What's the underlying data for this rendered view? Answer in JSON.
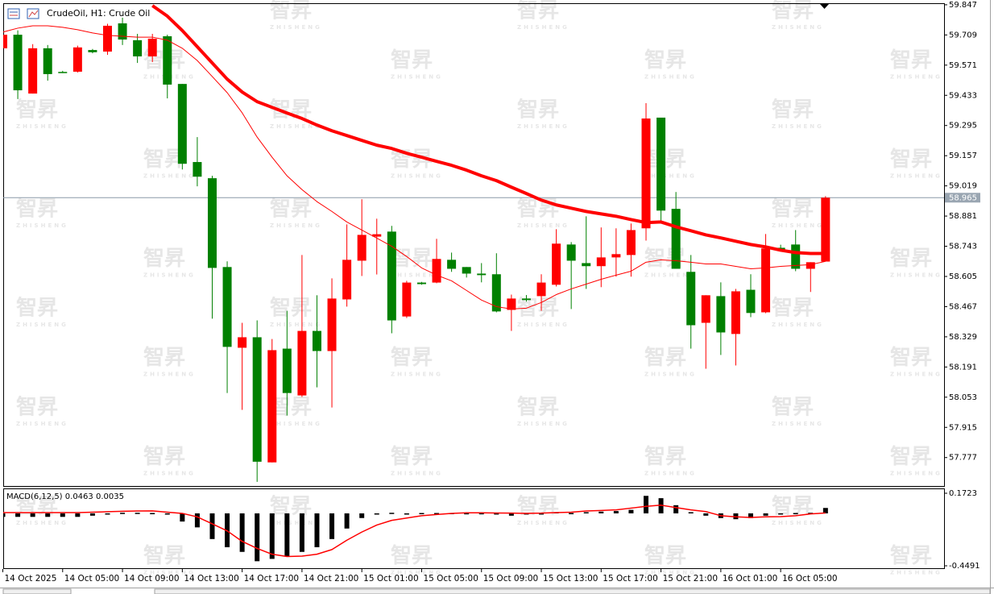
{
  "chart_data": [
    {
      "type": "candlestick",
      "title": "CrudeOil, H1:  Crude Oil",
      "watermark": "智昇",
      "watermark_sub": "ZHISHENG",
      "categories": [
        "14 Oct 2025",
        null,
        null,
        null,
        "14 Oct 05:00",
        null,
        null,
        null,
        "14 Oct 09:00",
        null,
        null,
        null,
        "14 Oct 13:00",
        null,
        null,
        null,
        "14 Oct 17:00",
        null,
        null,
        null,
        "14 Oct 21:00",
        null,
        null,
        null,
        "15 Oct 01:00",
        null,
        null,
        null,
        "15 Oct 05:00",
        null,
        null,
        null,
        "15 Oct 09:00",
        null,
        null,
        null,
        "15 Oct 13:00",
        null,
        null,
        null,
        "15 Oct 17:00",
        null,
        null,
        null,
        "15 Oct 21:00",
        null,
        null,
        null,
        "16 Oct 01:00",
        null,
        null,
        null,
        "16 Oct 05:00",
        null,
        null,
        null
      ],
      "open": [
        59.648,
        59.71,
        59.441,
        59.648,
        59.54,
        59.541,
        59.64,
        59.633,
        59.762,
        59.685,
        59.611,
        59.703,
        59.485,
        59.128,
        59.054,
        58.648,
        58.279,
        58.327,
        57.755,
        58.275,
        58.061,
        58.356,
        58.264,
        58.5,
        58.677,
        58.787,
        58.81,
        58.422,
        58.577,
        58.577,
        58.681,
        58.648,
        58.618,
        58.615,
        58.452,
        58.504,
        58.515,
        58.567,
        58.751,
        58.666,
        58.652,
        58.692,
        58.703,
        58.825,
        59.331,
        58.914,
        58.626,
        58.393,
        58.515,
        58.342,
        58.544,
        58.441,
        58.736,
        58.751,
        58.64,
        58.673
      ],
      "high": [
        59.72,
        59.73,
        59.667,
        59.663,
        59.545,
        59.66,
        59.645,
        59.76,
        59.788,
        59.714,
        59.714,
        59.71,
        59.485,
        59.242,
        59.065,
        58.674,
        58.393,
        58.404,
        58.319,
        58.448,
        58.703,
        58.519,
        58.596,
        58.843,
        58.958,
        58.869,
        58.836,
        58.585,
        58.58,
        58.777,
        58.714,
        58.648,
        58.666,
        58.711,
        58.522,
        58.52,
        58.615,
        58.821,
        58.762,
        58.88,
        58.829,
        58.825,
        58.847,
        59.397,
        59.331,
        58.991,
        58.703,
        58.519,
        58.578,
        58.548,
        58.615,
        58.799,
        58.75,
        58.817,
        58.67,
        58.972
      ],
      "low": [
        59.64,
        59.416,
        59.441,
        59.5,
        59.535,
        59.537,
        59.625,
        59.618,
        59.663,
        59.581,
        59.585,
        59.419,
        59.094,
        59.017,
        58.412,
        58.072,
        57.995,
        57.666,
        57.755,
        57.969,
        58.054,
        58.098,
        58.006,
        58.467,
        58.607,
        58.614,
        58.345,
        58.415,
        58.567,
        58.574,
        58.626,
        58.6,
        58.578,
        58.441,
        58.356,
        58.49,
        58.448,
        58.559,
        58.456,
        58.548,
        58.556,
        58.604,
        58.604,
        58.769,
        58.858,
        58.64,
        58.275,
        58.183,
        58.246,
        58.198,
        58.419,
        58.437,
        58.72,
        58.629,
        58.534,
        58.673
      ],
      "close": [
        59.71,
        59.456,
        59.648,
        59.53,
        59.537,
        59.652,
        59.63,
        59.751,
        59.688,
        59.611,
        59.692,
        59.482,
        59.12,
        59.061,
        58.644,
        58.283,
        58.327,
        57.758,
        58.268,
        58.072,
        58.356,
        58.264,
        58.504,
        58.681,
        58.795,
        58.798,
        58.404,
        58.577,
        58.57,
        58.685,
        58.64,
        58.618,
        58.611,
        58.445,
        58.504,
        58.497,
        58.577,
        58.755,
        58.677,
        58.652,
        58.692,
        58.707,
        58.817,
        59.327,
        58.906,
        58.64,
        58.382,
        58.519,
        58.349,
        58.537,
        58.438,
        58.733,
        58.725,
        58.64,
        58.67,
        58.965
      ],
      "up_color": "#ff0000",
      "down_color": "#008000",
      "lines": [
        {
          "color": "#ff0000",
          "values": [
            null,
            null,
            null,
            null,
            null,
            null,
            null,
            null,
            null,
            null,
            59.843,
            59.795,
            59.729,
            59.655,
            59.581,
            59.507,
            59.448,
            59.404,
            59.378,
            59.352,
            59.327,
            59.297,
            59.271,
            59.249,
            59.227,
            59.205,
            59.19,
            59.168,
            59.15,
            59.131,
            59.113,
            59.091,
            59.065,
            59.043,
            59.013,
            58.984,
            58.954,
            58.932,
            58.917,
            58.902,
            58.891,
            58.88,
            58.865,
            58.851,
            58.854,
            58.832,
            58.814,
            58.795,
            58.781,
            58.766,
            58.751,
            58.74,
            58.725,
            58.714,
            58.71,
            58.71
          ]
        },
        {
          "color": "#ff0000",
          "values": [
            59.722,
            59.74,
            59.751,
            59.751,
            59.744,
            59.733,
            59.718,
            59.707,
            59.703,
            59.699,
            59.699,
            59.685,
            59.648,
            59.592,
            59.519,
            59.445,
            59.353,
            59.242,
            59.15,
            59.065,
            59.002,
            58.947,
            58.902,
            58.854,
            58.817,
            58.78,
            58.743,
            58.696,
            58.644,
            58.611,
            58.585,
            58.541,
            58.497,
            58.467,
            58.456,
            58.46,
            58.486,
            58.522,
            58.548,
            58.57,
            58.592,
            58.611,
            58.629,
            58.67,
            58.681,
            58.677,
            58.67,
            58.662,
            58.662,
            58.651,
            58.64,
            58.644,
            58.651,
            58.655,
            58.659,
            58.674
          ]
        }
      ],
      "ylim": [
        57.647,
        59.854
      ],
      "yticks": [
        59.847,
        59.709,
        59.571,
        59.433,
        59.295,
        59.157,
        59.019,
        58.881,
        58.743,
        58.605,
        58.467,
        58.329,
        58.191,
        58.053,
        57.915,
        57.777
      ],
      "grid": false
    },
    {
      "type": "macd",
      "title": "MACD(6,12,5)",
      "histogram": [
        -0.03,
        -0.03,
        -0.03,
        -0.03,
        -0.03,
        -0.03,
        -0.02,
        -0.01,
        0.005,
        0.005,
        0.003,
        -0.01,
        -0.07,
        -0.12,
        -0.22,
        -0.29,
        -0.33,
        -0.41,
        -0.39,
        -0.37,
        -0.33,
        -0.29,
        -0.22,
        -0.13,
        -0.04,
        -0.01,
        0.005,
        -0.01,
        0.003,
        0.003,
        0.003,
        0.002,
        0.002,
        -0.01,
        -0.02,
        -0.01,
        -0.01,
        0.01,
        0.003,
        0.01,
        0.015,
        0.02,
        0.03,
        0.15,
        0.13,
        0.07,
        0.01,
        -0.02,
        -0.04,
        -0.05,
        -0.04,
        -0.02,
        -0.01,
        0.003,
        0.005,
        0.0463
      ],
      "signal": [
        0.007,
        0.007,
        0.007,
        0.007,
        0.007,
        0.007,
        0.01,
        0.014,
        0.018,
        0.02,
        0.021,
        0.01,
        0.0,
        -0.03,
        -0.09,
        -0.15,
        -0.24,
        -0.3,
        -0.35,
        -0.37,
        -0.366,
        -0.35,
        -0.31,
        -0.23,
        -0.16,
        -0.1,
        -0.06,
        -0.04,
        -0.02,
        -0.01,
        0.0,
        0.005,
        0.005,
        0.003,
        0.002,
        0.0,
        0.002,
        0.007,
        0.01,
        0.02,
        0.025,
        0.03,
        0.045,
        0.06,
        0.07,
        0.05,
        0.03,
        0.015,
        -0.02,
        -0.03,
        -0.035,
        -0.03,
        -0.028,
        -0.02,
        -0.005,
        0.0035
      ],
      "histogram_color": "#000000",
      "signal_color": "#ff0000",
      "ylim": [
        -0.4698,
        0.2068
      ],
      "yticks": [
        0.1723,
        -0.4491
      ]
    }
  ]
}
